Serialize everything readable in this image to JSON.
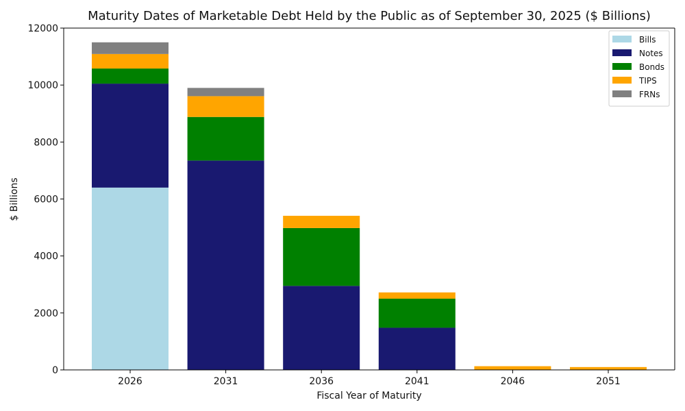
{
  "chart_data": {
    "type": "bar",
    "stacked": true,
    "title": "Maturity Dates of Marketable Debt Held by the Public as of September 30, 2025 ($ Billions)",
    "xlabel": "Fiscal Year of Maturity",
    "ylabel": "$ Billions",
    "categories": [
      "2026",
      "2031",
      "2036",
      "2041",
      "2046",
      "2051"
    ],
    "ylim": [
      0,
      12000
    ],
    "yticks": [
      0,
      2000,
      4000,
      6000,
      8000,
      10000,
      12000
    ],
    "legend_position": "top-right",
    "series": [
      {
        "name": "Bills",
        "color": "#add8e6",
        "values": [
          6400,
          0,
          0,
          0,
          0,
          0
        ]
      },
      {
        "name": "Notes",
        "color": "#191970",
        "values": [
          3650,
          7350,
          2950,
          1480,
          0,
          0
        ]
      },
      {
        "name": "Bonds",
        "color": "#008000",
        "values": [
          530,
          1530,
          2030,
          1020,
          0,
          0
        ]
      },
      {
        "name": "TIPS",
        "color": "#ffa500",
        "values": [
          510,
          730,
          430,
          220,
          130,
          100
        ]
      },
      {
        "name": "FRNs",
        "color": "#808080",
        "values": [
          410,
          290,
          0,
          0,
          0,
          0
        ]
      }
    ]
  }
}
